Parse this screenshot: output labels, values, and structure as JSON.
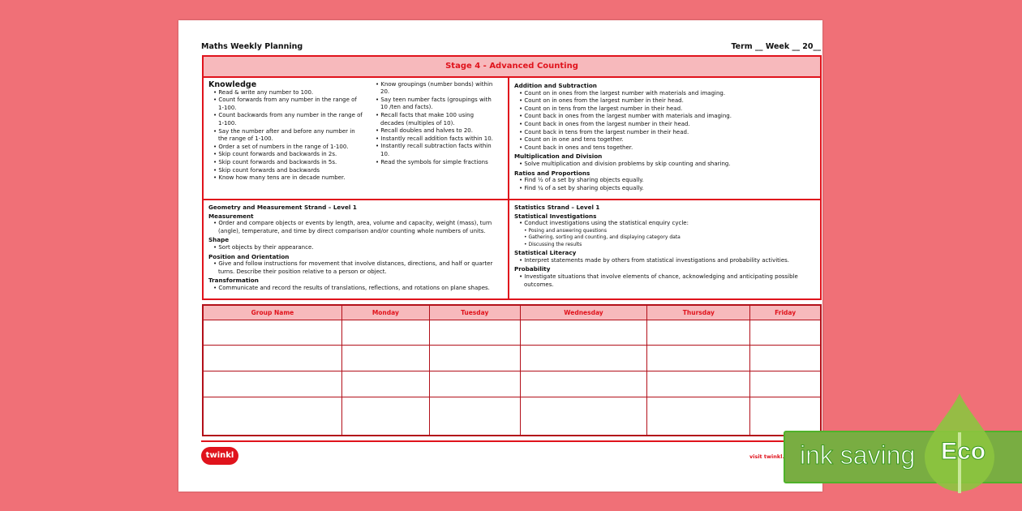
{
  "header": {
    "title": "Maths Weekly Planning",
    "term": "Term __  Week __  20__"
  },
  "stage_title": "Stage 4 - Advanced Counting",
  "knowledge": {
    "heading": "Knowledge",
    "col1": [
      "Read & write any number to 100.",
      "Count forwards from any number in the range of 1-100.",
      "Count backwards from any number in the range of 1-100.",
      "Say the number after and before any number in the range of 1-100.",
      "Order a set of numbers in the range of 1-100.",
      "Skip count forwards and backwards in 2s.",
      "Skip count forwards and backwards in 5s.",
      "Skip count forwards and backwards",
      "Know how many tens are in decade number."
    ],
    "col2": [
      "Know groupings (number bonds) within 20.",
      "Say teen number facts (groupings with 10 /ten and facts).",
      "Recall facts that make 100 using decades (multiples of 10).",
      "Recall doubles and halves to 20.",
      "Instantly recall addition facts within 10.",
      "Instantly recall subtraction facts within 10.",
      "Read the symbols for simple fractions"
    ]
  },
  "number": {
    "sections": [
      {
        "heading": "Addition and Subtraction",
        "items": [
          "Count on in ones from the largest number with materials and imaging.",
          "Count on in ones from the largest number in their head.",
          "Count on in tens from the largest number in their head.",
          "Count back in ones from the largest number with materials and imaging.",
          "Count back in ones from the largest number in their head.",
          "Count back in tens from the largest number in their head.",
          "Count on in one and tens together.",
          "Count back in ones and tens together."
        ]
      },
      {
        "heading": "Multiplication and Division",
        "items": [
          "Solve multiplication and division problems by skip counting and sharing."
        ]
      },
      {
        "heading": "Ratios and Proportions",
        "items": [
          "Find ½ of a set by sharing objects equally.",
          "Find ¼ of a set by sharing objects equally."
        ]
      }
    ]
  },
  "geometry": {
    "title": "Geometry and Measurement Strand – Level 1",
    "sections": [
      {
        "heading": "Measurement",
        "items": [
          "Order and compare objects or events by length, area, volume and capacity, weight (mass), turn (angle), temperature, and time by direct comparison and/or counting whole numbers of units."
        ]
      },
      {
        "heading": "Shape",
        "items": [
          "Sort objects by their appearance."
        ]
      },
      {
        "heading": "Position and Orientation",
        "items": [
          "Give and follow instructions for movement that involve distances, directions, and half or quarter turns. Describe their position relative to a person or object."
        ]
      },
      {
        "heading": "Transformation",
        "items": [
          "Communicate and record the results of translations, reflections, and rotations on plane shapes."
        ]
      }
    ]
  },
  "statistics": {
    "title": "Statistics Strand – Level 1",
    "inv_heading": "Statistical Investigations",
    "inv_item": "Conduct investigations using the statistical enquiry cycle:",
    "inv_sub": [
      "Posing and answering questions",
      "Gathering, sorting and counting, and displaying category data",
      "Discussing the results"
    ],
    "lit_heading": "Statistical Literacy",
    "lit_item": "Interpret statements made by others from statistical investigations and probability activities.",
    "prob_heading": "Probability",
    "prob_item": "Investigate situations that involve elements of chance, acknowledging and anticipating possible outcomes."
  },
  "table": {
    "headers": [
      "Group Name",
      "Monday",
      "Tuesday",
      "Wednesday",
      "Thursday",
      "Friday"
    ],
    "rows": 4
  },
  "footer": {
    "logo": "twinkl",
    "visit": "visit twinkl.c"
  },
  "eco": {
    "text": "ink saving",
    "badge": "Eco"
  },
  "colors": {
    "background": "#f07077",
    "accent": "#e0131c",
    "header_fill": "#f7b9bc",
    "eco_green": "#79ad42"
  }
}
